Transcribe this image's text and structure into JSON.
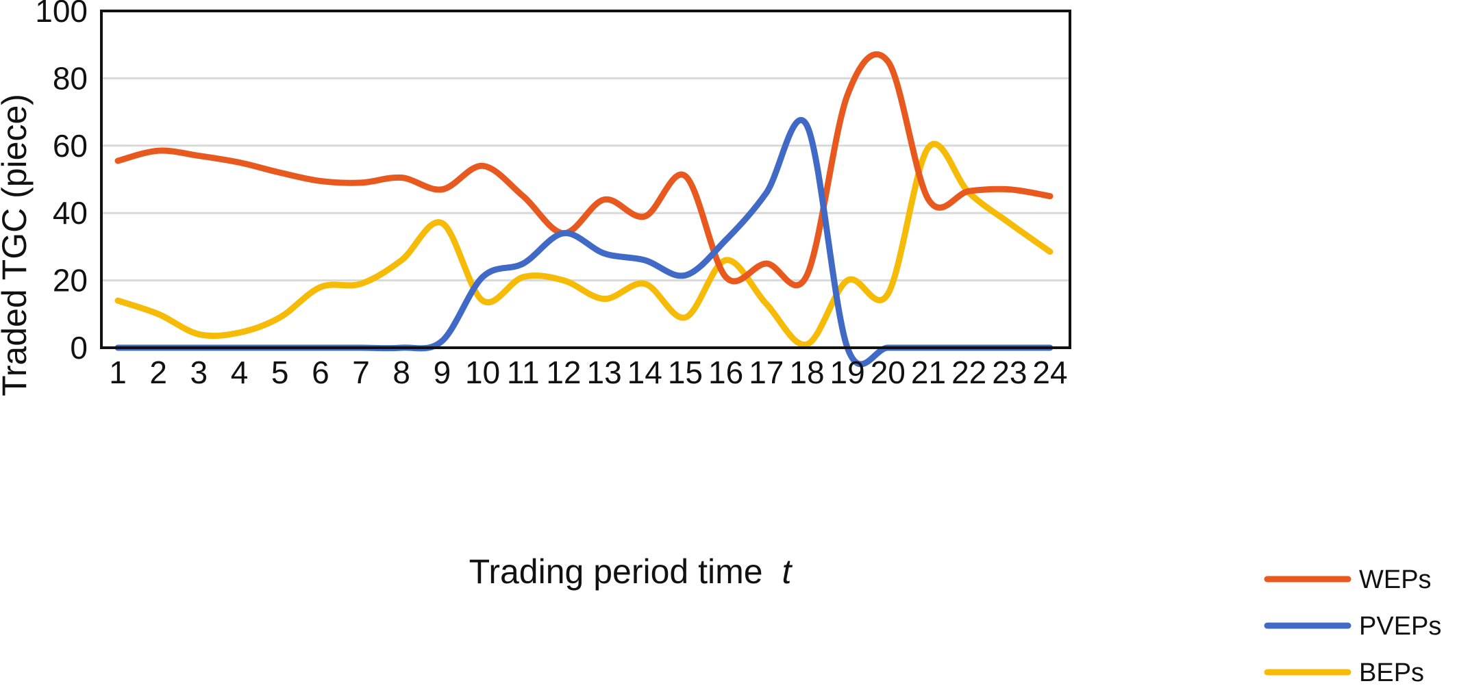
{
  "chart_data": {
    "type": "line",
    "title": "",
    "xlabel": "Trading period time",
    "xlabel_var": "t",
    "ylabel": "Traded TGC (piece)",
    "x": [
      1,
      2,
      3,
      4,
      5,
      6,
      7,
      8,
      9,
      10,
      11,
      12,
      13,
      14,
      15,
      16,
      17,
      18,
      19,
      20,
      21,
      22,
      23,
      24
    ],
    "ylim": [
      0,
      100
    ],
    "yticks": [
      0,
      20,
      40,
      60,
      80,
      100
    ],
    "grid": true,
    "legend_position": "bottom-right",
    "series": [
      {
        "name": "WEPs",
        "color": "#e8591f",
        "values": [
          55.5,
          58.5,
          57,
          55,
          52,
          49.5,
          49,
          50.5,
          47,
          54,
          45,
          34,
          44,
          39,
          51,
          21,
          25,
          21.5,
          75,
          85,
          44,
          46.5,
          47,
          45
        ]
      },
      {
        "name": "PVEPs",
        "color": "#4169c6",
        "values": [
          0,
          0,
          0,
          0,
          0,
          0,
          0,
          0,
          2,
          21,
          25,
          34,
          28,
          26,
          21.5,
          32,
          46,
          66,
          0,
          0,
          0,
          0,
          0,
          0
        ]
      },
      {
        "name": "BEPs",
        "color": "#f5bb06",
        "values": [
          14,
          10,
          4,
          4.5,
          9,
          18,
          19,
          26,
          37,
          14,
          21,
          20,
          14.5,
          19,
          9,
          26,
          13,
          1,
          20,
          16,
          59.5,
          46,
          37,
          28.5
        ]
      }
    ]
  }
}
